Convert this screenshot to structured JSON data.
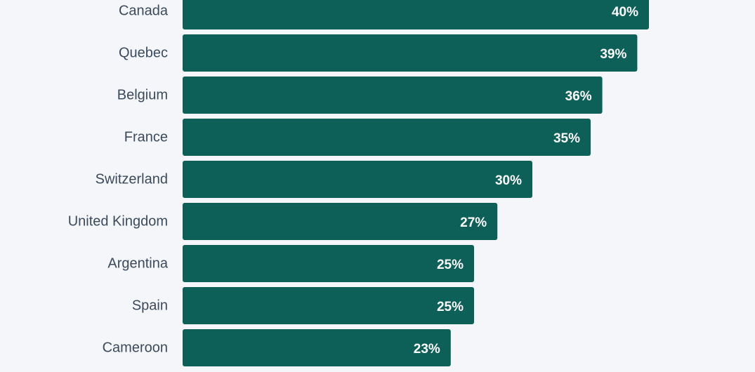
{
  "chart_data": {
    "type": "bar",
    "orientation": "horizontal",
    "categories": [
      "Canada",
      "Quebec",
      "Belgium",
      "France",
      "Switzerland",
      "United Kingdom",
      "Argentina",
      "Spain",
      "Cameroon"
    ],
    "values": [
      40,
      39,
      36,
      35,
      30,
      27,
      25,
      25,
      23
    ],
    "value_labels": [
      "40%",
      "39%",
      "36%",
      "35%",
      "30%",
      "27%",
      "25%",
      "25%",
      "23%"
    ],
    "unit": "%",
    "bar_color": "#0d6058",
    "grid": false,
    "legend": "none",
    "title": "",
    "xlabel": "",
    "ylabel": ""
  }
}
